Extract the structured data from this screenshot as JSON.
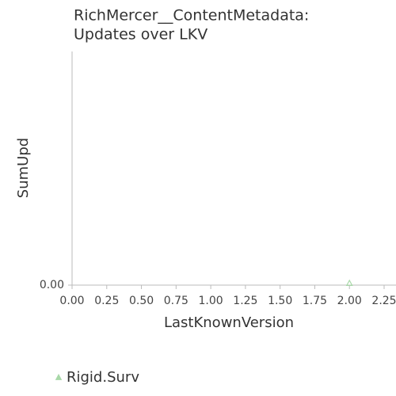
{
  "chart_data": {
    "type": "scatter",
    "title": [
      "RichMercer__ContentMetadata:",
      "Updates over LKV"
    ],
    "xlabel": "LastKnownVersion",
    "ylabel": "SumUpd",
    "series": [
      {
        "name": "Rigid.Surv",
        "color": "#a8d8a8",
        "marker": "triangle",
        "x": [
          2.0
        ],
        "values": [
          0
        ]
      }
    ],
    "xlim": [
      0,
      2.25
    ],
    "xticks": [
      {
        "value": 0,
        "label": "0.00"
      },
      {
        "value": 0.25,
        "label": "0.25"
      },
      {
        "value": 0.5,
        "label": "0.50"
      },
      {
        "value": 0.75,
        "label": "0.75"
      },
      {
        "value": 1,
        "label": "1.00"
      },
      {
        "value": 1.25,
        "label": "1.25"
      },
      {
        "value": 1.5,
        "label": "1.50"
      },
      {
        "value": 1.75,
        "label": "1.75"
      },
      {
        "value": 2,
        "label": "2.00"
      },
      {
        "value": 2.25,
        "label": "2.25"
      }
    ],
    "ylim": [
      0,
      1
    ],
    "yticks": [
      {
        "value": 0,
        "label": "0.00"
      }
    ],
    "grid": false,
    "legend": "bottom-left"
  }
}
